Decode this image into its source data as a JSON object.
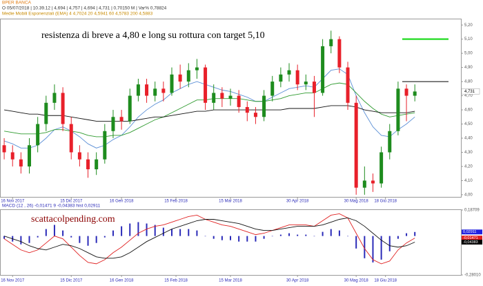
{
  "header": {
    "title": "BPER BANCA",
    "quote": "O 05/07/2018 | 10.39.12 | 4,694 | 4,757 | 4,694 | 4,731 | 0,70150 M | Var% 0,78824",
    "indicators": "Medie Mobili Esponenziali (EMA)   4   4,7024   20   4,5941   60   4,5783   200   4,5883"
  },
  "chart_data": [
    {
      "type": "candlestick",
      "annotation": "resistenza di breve a 4,80 e long su rottura con target 5,10",
      "last_price": {
        "value": 4.731,
        "label": "4,731"
      },
      "up_color": "#1e8c1e",
      "down_color": "#e8202a",
      "open": [
        4.35,
        4.3,
        4.25,
        4.2,
        4.35,
        4.5,
        4.65,
        4.72,
        4.5,
        4.3,
        4.25,
        4.18,
        4.25,
        4.45,
        4.55,
        4.52,
        4.7,
        4.78,
        4.7,
        4.75,
        4.72,
        4.85,
        4.8,
        4.88,
        4.9,
        4.65,
        4.72,
        4.68,
        4.7,
        4.62,
        4.58,
        4.55,
        4.7,
        4.8,
        4.85,
        4.88,
        4.78,
        4.8,
        4.72,
        5.05,
        5.1,
        4.9,
        4.65,
        4.05,
        4.1,
        4.08,
        4.3,
        4.45,
        4.75,
        4.7
      ],
      "high": [
        4.4,
        4.35,
        4.3,
        4.4,
        4.55,
        4.7,
        4.78,
        4.76,
        4.55,
        4.35,
        4.3,
        4.3,
        4.5,
        4.6,
        4.6,
        4.75,
        4.82,
        4.82,
        4.8,
        4.8,
        4.9,
        4.92,
        4.93,
        4.96,
        4.92,
        4.78,
        4.76,
        4.75,
        4.74,
        4.66,
        4.62,
        4.74,
        4.84,
        4.9,
        4.93,
        4.92,
        4.85,
        4.84,
        5.1,
        5.16,
        5.12,
        4.94,
        4.7,
        4.2,
        4.15,
        4.34,
        4.5,
        4.8,
        4.78,
        4.78
      ],
      "low": [
        4.25,
        4.2,
        4.15,
        4.15,
        4.3,
        4.45,
        4.6,
        4.45,
        4.25,
        4.2,
        4.12,
        4.14,
        4.22,
        4.4,
        4.46,
        4.5,
        4.66,
        4.65,
        4.66,
        4.66,
        4.7,
        4.75,
        4.76,
        4.82,
        4.6,
        4.6,
        4.62,
        4.63,
        4.58,
        4.52,
        4.5,
        4.52,
        4.66,
        4.76,
        4.8,
        4.74,
        4.74,
        4.55,
        4.7,
        5.0,
        4.86,
        4.6,
        4.0,
        4.0,
        4.02,
        4.05,
        4.25,
        4.42,
        4.52,
        4.66
      ],
      "close": [
        4.3,
        4.25,
        4.2,
        4.35,
        4.5,
        4.65,
        4.72,
        4.5,
        4.3,
        4.25,
        4.18,
        4.25,
        4.45,
        4.55,
        4.52,
        4.7,
        4.78,
        4.7,
        4.75,
        4.72,
        4.85,
        4.8,
        4.88,
        4.9,
        4.65,
        4.72,
        4.68,
        4.7,
        4.62,
        4.58,
        4.55,
        4.7,
        4.8,
        4.85,
        4.88,
        4.78,
        4.8,
        4.72,
        5.05,
        5.1,
        4.9,
        4.65,
        4.05,
        4.1,
        4.08,
        4.3,
        4.45,
        4.75,
        4.7,
        4.73
      ],
      "series": [
        {
          "color": "#5b8fd6",
          "values": [
            4.38,
            4.36,
            4.33,
            4.33,
            4.35,
            4.4,
            4.46,
            4.48,
            4.45,
            4.41,
            4.36,
            4.33,
            4.35,
            4.39,
            4.42,
            4.48,
            4.55,
            4.6,
            4.64,
            4.67,
            4.72,
            4.75,
            4.78,
            4.8,
            4.78,
            4.76,
            4.74,
            4.73,
            4.71,
            4.69,
            4.66,
            4.66,
            4.69,
            4.72,
            4.75,
            4.76,
            4.77,
            4.76,
            4.82,
            4.88,
            4.89,
            4.85,
            4.7,
            4.58,
            4.48,
            4.42,
            4.41,
            4.46,
            4.5,
            4.55
          ]
        },
        {
          "color": "#2e9a2e",
          "values": [
            4.45,
            4.44,
            4.43,
            4.43,
            4.43,
            4.44,
            4.46,
            4.46,
            4.45,
            4.44,
            4.42,
            4.41,
            4.41,
            4.42,
            4.42,
            4.44,
            4.47,
            4.5,
            4.53,
            4.55,
            4.58,
            4.61,
            4.64,
            4.67,
            4.67,
            4.68,
            4.68,
            4.68,
            4.68,
            4.67,
            4.66,
            4.66,
            4.67,
            4.68,
            4.7,
            4.71,
            4.72,
            4.72,
            4.75,
            4.78,
            4.79,
            4.78,
            4.72,
            4.66,
            4.61,
            4.57,
            4.55,
            4.56,
            4.57,
            4.58
          ]
        },
        {
          "color": "#111111",
          "values": [
            4.6,
            4.59,
            4.58,
            4.57,
            4.57,
            4.56,
            4.56,
            4.56,
            4.55,
            4.54,
            4.53,
            4.52,
            4.52,
            4.52,
            4.52,
            4.52,
            4.53,
            4.54,
            4.55,
            4.55,
            4.56,
            4.57,
            4.58,
            4.59,
            4.59,
            4.6,
            4.6,
            4.6,
            4.6,
            4.6,
            4.6,
            4.6,
            4.6,
            4.6,
            4.61,
            4.61,
            4.61,
            4.61,
            4.62,
            4.63,
            4.63,
            4.63,
            4.62,
            4.6,
            4.59,
            4.58,
            4.58,
            4.58,
            4.58,
            4.59
          ]
        }
      ],
      "levels": [
        {
          "value": 5.1,
          "color": "#33dd33"
        },
        {
          "value": 4.8,
          "color": "#000000"
        }
      ],
      "xlim": [
        -0.5,
        54.5
      ],
      "ylim": [
        3.98,
        5.24
      ],
      "yticks": [
        {
          "value": 4.0,
          "label": "4,00"
        },
        {
          "value": 4.1,
          "label": "4,10"
        },
        {
          "value": 4.2,
          "label": "4,20"
        },
        {
          "value": 4.3,
          "label": "4,30"
        },
        {
          "value": 4.4,
          "label": "4,40"
        },
        {
          "value": 4.5,
          "label": "4,50"
        },
        {
          "value": 4.6,
          "label": "4,60"
        },
        {
          "value": 4.7,
          "label": "4,70"
        },
        {
          "value": 4.8,
          "label": "4,80"
        },
        {
          "value": 4.9,
          "label": "4,90"
        },
        {
          "value": 5.0,
          "label": "5,00"
        },
        {
          "value": 5.1,
          "label": "5,10"
        },
        {
          "value": 5.2,
          "label": "5,20"
        }
      ],
      "xticks": [
        {
          "value": 1,
          "label": "16 Nov 2017"
        },
        {
          "value": 8,
          "label": "15 Dic 2017"
        },
        {
          "value": 14,
          "label": "16 Gen 2018"
        },
        {
          "value": 20.5,
          "label": "15 Feb 2018"
        },
        {
          "value": 27,
          "label": "15 Mar 2018"
        },
        {
          "value": 35,
          "label": "30 Apr 2018"
        },
        {
          "value": 42,
          "label": "30 Mag 2018"
        },
        {
          "value": 45.5,
          "label": "18 Giu 2018"
        }
      ]
    },
    {
      "type": "macd",
      "title": "MACD   (12 , 26)   -0,01471   9   -0,04383   hist   0,02911",
      "watermark": "scattacolpending.com",
      "series": [
        {
          "color": "#e02020",
          "values": [
            -0.02,
            -0.06,
            -0.1,
            -0.12,
            -0.1,
            -0.05,
            0.0,
            -0.02,
            -0.08,
            -0.14,
            -0.19,
            -0.2,
            -0.17,
            -0.12,
            -0.08,
            -0.03,
            0.02,
            0.05,
            0.07,
            0.08,
            0.1,
            0.12,
            0.14,
            0.15,
            0.12,
            0.1,
            0.08,
            0.07,
            0.05,
            0.03,
            0.01,
            0.02,
            0.04,
            0.06,
            0.08,
            0.08,
            0.08,
            0.07,
            0.11,
            0.15,
            0.16,
            0.13,
            0.02,
            -0.09,
            -0.17,
            -0.2,
            -0.18,
            -0.1,
            -0.05,
            -0.015
          ]
        },
        {
          "color": "#111111",
          "values": [
            0.0,
            -0.02,
            -0.04,
            -0.07,
            -0.09,
            -0.1,
            -0.08,
            -0.06,
            -0.07,
            -0.09,
            -0.12,
            -0.15,
            -0.16,
            -0.16,
            -0.15,
            -0.12,
            -0.08,
            -0.04,
            -0.01,
            0.02,
            0.05,
            0.07,
            0.09,
            0.11,
            0.12,
            0.12,
            0.11,
            0.1,
            0.09,
            0.07,
            0.05,
            0.04,
            0.04,
            0.05,
            0.06,
            0.07,
            0.07,
            0.07,
            0.08,
            0.1,
            0.12,
            0.13,
            0.11,
            0.07,
            0.02,
            -0.03,
            -0.07,
            -0.08,
            -0.07,
            -0.044
          ]
        }
      ],
      "hist": {
        "color": "#2a2ab8",
        "values": [
          -0.02,
          -0.04,
          -0.06,
          -0.05,
          -0.01,
          0.05,
          0.08,
          0.04,
          -0.01,
          -0.05,
          -0.07,
          -0.05,
          -0.01,
          0.04,
          0.07,
          0.09,
          0.1,
          0.09,
          0.08,
          0.06,
          0.05,
          0.05,
          0.05,
          0.04,
          0.0,
          -0.02,
          -0.03,
          -0.03,
          -0.04,
          -0.04,
          -0.04,
          -0.02,
          0.0,
          0.01,
          0.02,
          0.01,
          0.01,
          0.0,
          0.03,
          0.05,
          0.04,
          0.0,
          -0.09,
          -0.16,
          -0.19,
          -0.17,
          -0.11,
          -0.02,
          0.02,
          0.029
        ]
      },
      "end_labels": [
        {
          "value": 0.02911,
          "label": "0,02911",
          "color": "#2020e0"
        },
        {
          "value": -0.01471,
          "label": "-0,01471",
          "color": "#e02020"
        },
        {
          "value": -0.04383,
          "label": "-0,04383",
          "color": "#000000"
        }
      ],
      "xlim": [
        -0.5,
        54.5
      ],
      "ylim": [
        -0.2801,
        0.18709
      ],
      "yticks": [
        {
          "value": 0.18709,
          "label": "0,18709"
        },
        {
          "value": -0.2801,
          "label": "-0,28010"
        }
      ],
      "xticks": [
        {
          "value": 1,
          "label": "16 Nov 2017"
        },
        {
          "value": 8,
          "label": "15 Dic 2017"
        },
        {
          "value": 14,
          "label": "16 Gen 2018"
        },
        {
          "value": 20.5,
          "label": "15 Feb 2018"
        },
        {
          "value": 27,
          "label": "15 Mar 2018"
        },
        {
          "value": 35,
          "label": "30 Apr 2018"
        },
        {
          "value": 42,
          "label": "30 Mag 2018"
        },
        {
          "value": 45.5,
          "label": "18 Giu 2018"
        }
      ]
    }
  ]
}
